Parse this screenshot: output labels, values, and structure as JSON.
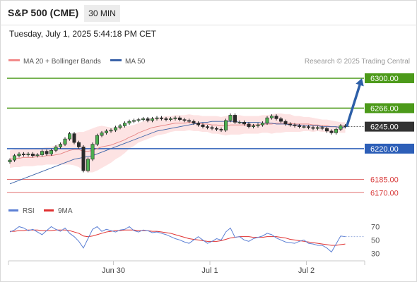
{
  "header": {
    "instrument": "S&P 500 (CME)",
    "timeframe": "30 MIN",
    "datetime": "Tuesday, July 1, 2025 5:44:18 PM CET"
  },
  "chart_data": {
    "type": "candlestick",
    "price_panel": {
      "ylim": [
        6163,
        6312
      ],
      "legend": [
        {
          "name": "MA 20 + Bollinger Bands",
          "color": "#f28b8b"
        },
        {
          "name": "MA 50",
          "color": "#3a62a8"
        }
      ],
      "legend_position": "top-left",
      "credit": "Research © 2025 Trading Central",
      "current_price": {
        "label": "6245.00",
        "value": 6245
      },
      "levels": [
        {
          "label": "6300.00",
          "value": 6300,
          "kind": "resistance",
          "color": "#4c9a1a"
        },
        {
          "label": "6266.00",
          "value": 6266,
          "kind": "resistance",
          "color": "#4c9a1a"
        },
        {
          "label": "6220.00",
          "value": 6220,
          "kind": "pivot",
          "color": "#2d5fb8"
        },
        {
          "label": "6185.00",
          "value": 6185,
          "kind": "support",
          "color": "#d83b3b"
        },
        {
          "label": "6170.00",
          "value": 6170,
          "kind": "support",
          "color": "#d83b3b"
        }
      ],
      "forecast_arrow": {
        "from": 6245,
        "to": 6300,
        "color": "#2d5fa8"
      },
      "close": [
        6207,
        6212,
        6214,
        6213,
        6214,
        6212,
        6213,
        6217,
        6214,
        6218,
        6222,
        6225,
        6231,
        6237,
        6227,
        6222,
        6195,
        6208,
        6225,
        6235,
        6238,
        6240,
        6241,
        6244,
        6246,
        6249,
        6251,
        6252,
        6253,
        6254,
        6252,
        6254,
        6255,
        6254,
        6253,
        6254,
        6255,
        6253,
        6252,
        6251,
        6249,
        6247,
        6245,
        6244,
        6243,
        6242,
        6241,
        6252,
        6258,
        6250,
        6250,
        6248,
        6245,
        6246,
        6247,
        6249,
        6255,
        6257,
        6254,
        6251,
        6248,
        6247,
        6246,
        6245,
        6245,
        6244,
        6243,
        6244,
        6243,
        6240,
        6238,
        6242,
        6246,
        6245
      ],
      "ma20": [
        6208,
        6209,
        6209,
        6210,
        6210,
        6210,
        6211,
        6211,
        6212,
        6212,
        6213,
        6214,
        6216,
        6218,
        6219,
        6219,
        6217,
        6217,
        6218,
        6220,
        6222,
        6223,
        6224,
        6226,
        6228,
        6230,
        6233,
        6235,
        6238,
        6240,
        6242,
        6244,
        6245,
        6246,
        6247,
        6248,
        6249,
        6249,
        6249,
        6250,
        6249,
        6249,
        6248,
        6248,
        6247,
        6247,
        6246,
        6246,
        6247,
        6247,
        6247,
        6247,
        6247,
        6247,
        6247,
        6248,
        6248,
        6248,
        6249,
        6249,
        6249,
        6249,
        6248,
        6248,
        6248,
        6248,
        6247,
        6247,
        6246,
        6246,
        6245,
        6245,
        6244,
        6244
      ],
      "bb_half_width": [
        10,
        10,
        10,
        10,
        10,
        10,
        10,
        10,
        10,
        10,
        11,
        12,
        14,
        16,
        18,
        20,
        22,
        24,
        25,
        25,
        24,
        22,
        20,
        18,
        17,
        15,
        13,
        12,
        11,
        11,
        11,
        11,
        10,
        10,
        10,
        9,
        9,
        9,
        9,
        9,
        9,
        9,
        9,
        9,
        10,
        10,
        10,
        11,
        11,
        11,
        11,
        10,
        10,
        10,
        10,
        10,
        10,
        11,
        11,
        11,
        10,
        10,
        9,
        9,
        8,
        8,
        8,
        7,
        7,
        7,
        7,
        6,
        6,
        6
      ],
      "ma50": [
        6180,
        6182,
        6184,
        6186,
        6188,
        6190,
        6192,
        6194,
        6196,
        6198,
        6200,
        6202,
        6204,
        6206,
        6208,
        6209,
        6210,
        6211,
        6212,
        6214,
        6216,
        6218,
        6220,
        6222,
        6224,
        6226,
        6228,
        6230,
        6232,
        6234,
        6236,
        6238,
        6240,
        6241,
        6242,
        6243,
        6244,
        6245,
        6246,
        6247,
        6248,
        6249,
        6250,
        6250,
        6251,
        6251,
        6251,
        6251,
        6251,
        6251,
        6250,
        6250,
        6250,
        6250,
        6250,
        6249,
        6249,
        6249,
        6248,
        6248,
        6248,
        6247,
        6247,
        6247,
        6246,
        6246,
        6246,
        6246,
        6245,
        6245,
        6245,
        6245,
        6244,
        6244
      ]
    },
    "rsi_panel": {
      "ylim": [
        23,
        80
      ],
      "y_ticks": [
        70,
        50,
        30
      ],
      "legend": [
        {
          "name": "RSI",
          "color": "#5b7fd4"
        },
        {
          "name": "9MA",
          "color": "#e03030"
        }
      ],
      "rsi": [
        62,
        65,
        70,
        68,
        64,
        66,
        62,
        58,
        64,
        70,
        66,
        63,
        68,
        60,
        55,
        48,
        38,
        52,
        66,
        70,
        63,
        66,
        64,
        62,
        65,
        66,
        70,
        64,
        62,
        65,
        64,
        61,
        62,
        60,
        58,
        55,
        52,
        50,
        47,
        45,
        50,
        55,
        50,
        45,
        48,
        52,
        50,
        62,
        68,
        54,
        55,
        50,
        48,
        52,
        54,
        56,
        60,
        58,
        53,
        50,
        47,
        46,
        45,
        48,
        50,
        45,
        44,
        42,
        42,
        38,
        32,
        44,
        56,
        55
      ],
      "ma9": [
        63,
        63,
        64,
        64,
        65,
        65,
        65,
        64,
        64,
        64,
        65,
        65,
        65,
        64,
        62,
        60,
        56,
        55,
        56,
        58,
        60,
        62,
        63,
        64,
        64,
        65,
        65,
        65,
        64,
        64,
        64,
        63,
        63,
        62,
        61,
        60,
        58,
        56,
        54,
        52,
        51,
        50,
        49,
        48,
        48,
        48,
        49,
        51,
        53,
        54,
        55,
        55,
        55,
        54,
        54,
        54,
        55,
        55,
        55,
        54,
        53,
        51,
        50,
        49,
        48,
        47,
        46,
        45,
        44,
        43,
        42,
        42,
        43,
        44
      ]
    },
    "x_labels": [
      {
        "label": "Jun 30",
        "index": 17
      },
      {
        "label": "Jul 1",
        "index": 38
      },
      {
        "label": "Jul 2",
        "index": 59
      }
    ]
  }
}
